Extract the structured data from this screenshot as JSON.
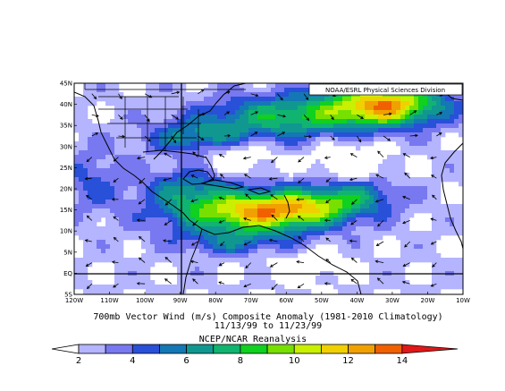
{
  "credit": "NOAA/ESRL Physical Sciences Division",
  "title_line1": "700mb Vector Wind (m/s) Composite Anomaly (1981-2010 Climatology)",
  "title_line2": "11/13/99  to 11/23/99",
  "source": "NCEP/NCAR Reanalysis",
  "lat_labels": [
    "45N",
    "40N",
    "35N",
    "30N",
    "25N",
    "20N",
    "15N",
    "10N",
    "5N",
    "EQ",
    "5S"
  ],
  "lon_labels": [
    "120W",
    "110W",
    "100W",
    "90W",
    "80W",
    "70W",
    "60W",
    "50W",
    "40W",
    "30W",
    "20W",
    "10W"
  ],
  "chart_data": {
    "type": "heatmap",
    "title": "700mb Vector Wind (m/s) Composite Anomaly (1981-2010 Climatology)",
    "subtitle": "11/13/99  to 11/23/99",
    "lat_range": [
      -5,
      45
    ],
    "lon_range": [
      -120,
      -10
    ],
    "colorbar": {
      "ticks": [
        2,
        4,
        6,
        8,
        10,
        12,
        14
      ],
      "levels": [
        2,
        3,
        4,
        5,
        6,
        7,
        8,
        9,
        10,
        11,
        12,
        13,
        14
      ],
      "colors": [
        "#b4b4ff",
        "#7878f0",
        "#2850d8",
        "#1478b4",
        "#109890",
        "#10b470",
        "#10d020",
        "#78e000",
        "#c8f000",
        "#f0d000",
        "#f0a000",
        "#f06000",
        "#e01818"
      ]
    },
    "colors": {
      "background": "#ffffff",
      "lowest_band": "#b4b4ff",
      "map_outline": "#000000"
    }
  }
}
